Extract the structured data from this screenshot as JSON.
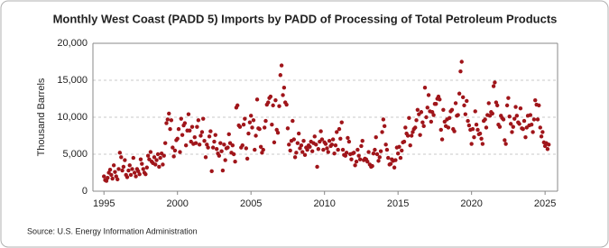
{
  "chart_data": {
    "type": "scatter",
    "title": "Monthly West Coast (PADD 5) Imports by PADD of Processing of Total Petroleum Products",
    "y_label": "Thousand Barrels",
    "source": "Source: U.S. Energy Information Administration",
    "color": "#a0151a",
    "grid": true,
    "xlim": [
      1994.25,
      2025.85
    ],
    "ylim": [
      0,
      20000
    ],
    "xticks": [
      1995,
      2000,
      2005,
      2010,
      2015,
      2020,
      2025
    ],
    "yticks": [
      0,
      {
        "value": 5000,
        "label": "5,000"
      },
      {
        "value": 10000,
        "label": "10,000"
      },
      {
        "value": 15000,
        "label": "15,000"
      },
      {
        "value": 20000,
        "label": "20,000"
      }
    ],
    "x": [
      1995,
      1995.08,
      1995.17,
      1995.25,
      1995.33,
      1995.42,
      1995.5,
      1995.58,
      1995.67,
      1995.75,
      1995.83,
      1995.92,
      1996,
      1996.08,
      1996.17,
      1996.25,
      1996.33,
      1996.42,
      1996.5,
      1996.58,
      1996.67,
      1996.75,
      1996.83,
      1996.92,
      1997,
      1997.08,
      1997.17,
      1997.25,
      1997.33,
      1997.42,
      1997.5,
      1997.58,
      1997.67,
      1997.75,
      1997.83,
      1997.92,
      1998,
      1998.08,
      1998.17,
      1998.25,
      1998.33,
      1998.42,
      1998.5,
      1998.58,
      1998.67,
      1998.75,
      1998.83,
      1998.92,
      1999,
      1999.08,
      1999.17,
      1999.25,
      1999.33,
      1999.42,
      1999.5,
      1999.58,
      1999.67,
      1999.75,
      1999.83,
      1999.92,
      2000,
      2000.08,
      2000.17,
      2000.25,
      2000.33,
      2000.42,
      2000.5,
      2000.58,
      2000.67,
      2000.75,
      2000.83,
      2000.92,
      2001,
      2001.08,
      2001.17,
      2001.25,
      2001.33,
      2001.42,
      2001.5,
      2001.58,
      2001.67,
      2001.75,
      2001.83,
      2001.92,
      2002,
      2002.08,
      2002.17,
      2002.25,
      2002.33,
      2002.42,
      2002.5,
      2002.58,
      2002.67,
      2002.75,
      2002.83,
      2002.92,
      2003,
      2003.08,
      2003.17,
      2003.25,
      2003.33,
      2003.42,
      2003.5,
      2003.58,
      2003.67,
      2003.75,
      2003.83,
      2003.92,
      2004,
      2004.08,
      2004.17,
      2004.25,
      2004.33,
      2004.42,
      2004.5,
      2004.58,
      2004.67,
      2004.75,
      2004.83,
      2004.92,
      2005,
      2005.08,
      2005.17,
      2005.25,
      2005.33,
      2005.42,
      2005.5,
      2005.58,
      2005.67,
      2005.75,
      2005.83,
      2005.92,
      2006,
      2006.08,
      2006.17,
      2006.25,
      2006.33,
      2006.42,
      2006.5,
      2006.58,
      2006.67,
      2006.75,
      2006.83,
      2006.92,
      2007,
      2007.08,
      2007.17,
      2007.25,
      2007.33,
      2007.42,
      2007.5,
      2007.58,
      2007.67,
      2007.75,
      2007.83,
      2007.92,
      2008,
      2008.08,
      2008.17,
      2008.25,
      2008.33,
      2008.42,
      2008.5,
      2008.58,
      2008.67,
      2008.75,
      2008.83,
      2008.92,
      2009,
      2009.08,
      2009.17,
      2009.25,
      2009.33,
      2009.42,
      2009.5,
      2009.58,
      2009.67,
      2009.75,
      2009.83,
      2009.92,
      2010,
      2010.08,
      2010.17,
      2010.25,
      2010.33,
      2010.42,
      2010.5,
      2010.58,
      2010.67,
      2010.75,
      2010.83,
      2010.92,
      2011,
      2011.08,
      2011.17,
      2011.25,
      2011.33,
      2011.42,
      2011.5,
      2011.58,
      2011.67,
      2011.75,
      2011.83,
      2011.92,
      2012,
      2012.08,
      2012.17,
      2012.25,
      2012.33,
      2012.42,
      2012.5,
      2012.58,
      2012.67,
      2012.75,
      2012.83,
      2012.92,
      2013,
      2013.08,
      2013.17,
      2013.25,
      2013.33,
      2013.42,
      2013.5,
      2013.58,
      2013.67,
      2013.75,
      2013.83,
      2013.92,
      2014,
      2014.08,
      2014.17,
      2014.25,
      2014.33,
      2014.42,
      2014.5,
      2014.58,
      2014.67,
      2014.75,
      2014.83,
      2014.92,
      2015,
      2015.08,
      2015.17,
      2015.25,
      2015.33,
      2015.42,
      2015.5,
      2015.58,
      2015.67,
      2015.75,
      2015.83,
      2015.92,
      2016,
      2016.08,
      2016.17,
      2016.25,
      2016.33,
      2016.42,
      2016.5,
      2016.58,
      2016.67,
      2016.75,
      2016.83,
      2016.92,
      2017,
      2017.08,
      2017.17,
      2017.25,
      2017.33,
      2017.42,
      2017.5,
      2017.58,
      2017.67,
      2017.75,
      2017.83,
      2017.92,
      2018,
      2018.08,
      2018.17,
      2018.25,
      2018.33,
      2018.42,
      2018.5,
      2018.58,
      2018.67,
      2018.75,
      2018.83,
      2018.92,
      2019,
      2019.08,
      2019.17,
      2019.25,
      2019.33,
      2019.42,
      2019.5,
      2019.58,
      2019.67,
      2019.75,
      2019.83,
      2019.92,
      2020,
      2020.08,
      2020.17,
      2020.25,
      2020.33,
      2020.42,
      2020.5,
      2020.58,
      2020.67,
      2020.75,
      2020.83,
      2020.92,
      2021,
      2021.08,
      2021.17,
      2021.25,
      2021.33,
      2021.42,
      2021.5,
      2021.58,
      2021.67,
      2021.75,
      2021.83,
      2021.92,
      2022,
      2022.08,
      2022.17,
      2022.25,
      2022.33,
      2022.42,
      2022.5,
      2022.58,
      2022.67,
      2022.75,
      2022.83,
      2022.92,
      2023,
      2023.08,
      2023.17,
      2023.25,
      2023.33,
      2023.42,
      2023.5,
      2023.58,
      2023.67,
      2023.75,
      2023.83,
      2023.92,
      2024,
      2024.08,
      2024.17,
      2024.25,
      2024.33,
      2024.42,
      2024.5,
      2024.58,
      2024.67,
      2024.75,
      2024.83,
      2024.92,
      2025,
      2025.08,
      2025.17,
      2025.25
    ],
    "values": [
      2000,
      1500,
      1400,
      1800,
      2500,
      2900,
      2200,
      1700,
      3500,
      2600,
      2000,
      1600,
      3000,
      5200,
      4600,
      2800,
      3300,
      4200,
      2200,
      1900,
      2800,
      3500,
      2200,
      3000,
      4500,
      2500,
      2000,
      3000,
      2700,
      2300,
      4300,
      3700,
      3000,
      2500,
      2300,
      3200,
      4800,
      4300,
      5300,
      4000,
      3800,
      4600,
      3600,
      4200,
      5000,
      3300,
      4500,
      5100,
      3600,
      4800,
      6500,
      9200,
      9700,
      10500,
      8400,
      9600,
      5900,
      4700,
      5500,
      6900,
      7100,
      8400,
      5300,
      9800,
      7600,
      8900,
      9200,
      6200,
      8200,
      10400,
      8200,
      6700,
      8700,
      6400,
      7300,
      6500,
      8700,
      9600,
      6300,
      7500,
      8000,
      9800,
      6800,
      4600,
      6300,
      5900,
      7400,
      8100,
      2700,
      5900,
      6700,
      7600,
      5700,
      5100,
      4800,
      6500,
      5400,
      2800,
      6300,
      4200,
      5800,
      5900,
      7700,
      6500,
      5200,
      6200,
      5000,
      4000,
      11300,
      11600,
      8900,
      8700,
      5900,
      6200,
      9000,
      9800,
      5800,
      4400,
      7800,
      9300,
      10200,
      8600,
      9600,
      5600,
      7500,
      12400,
      8500,
      8400,
      6000,
      5200,
      5600,
      8600,
      9500,
      11700,
      12000,
      12600,
      12800,
      9000,
      11600,
      6600,
      12300,
      8300,
      7900,
      11500,
      15700,
      17000,
      13000,
      14000,
      12000,
      11700,
      8500,
      6300,
      5500,
      6800,
      9500,
      7000,
      4600,
      5200,
      6500,
      7800,
      5800,
      6200,
      5300,
      6800,
      4900,
      5900,
      5600,
      6200,
      6000,
      6700,
      5400,
      6500,
      7400,
      6300,
      3300,
      5700,
      6700,
      8100,
      7000,
      5600,
      6600,
      6400,
      5800,
      5300,
      6800,
      6100,
      6300,
      7000,
      5100,
      6200,
      8000,
      5600,
      8400,
      7100,
      9300,
      5600,
      4900,
      4800,
      5200,
      7200,
      6700,
      5000,
      4300,
      5100,
      5200,
      3500,
      4000,
      5600,
      4800,
      4300,
      6100,
      6800,
      4200,
      4400,
      4300,
      4000,
      5300,
      3600,
      3300,
      3400,
      5100,
      5600,
      7300,
      5000,
      4100,
      4600,
      5400,
      8000,
      9700,
      8800,
      6300,
      5600,
      4500,
      3600,
      3700,
      4300,
      4100,
      3200,
      4200,
      5900,
      5100,
      6000,
      4500,
      5500,
      6600,
      6700,
      8600,
      7800,
      7500,
      9900,
      6200,
      7500,
      8000,
      8400,
      8600,
      9600,
      11000,
      10400,
      7600,
      10700,
      9300,
      8800,
      14000,
      10000,
      11300,
      13000,
      10800,
      9400,
      10700,
      10300,
      11800,
      11800,
      12500,
      12800,
      12400,
      8300,
      7000,
      11000,
      9400,
      8800,
      9700,
      8600,
      9900,
      10800,
      11000,
      8400,
      8100,
      11900,
      10200,
      10300,
      13200,
      16200,
      17500,
      12700,
      11600,
      10400,
      12200,
      9500,
      8900,
      8300,
      6400,
      8400,
      7300,
      10800,
      9000,
      8300,
      7700,
      7800,
      7100,
      6400,
      9500,
      9700,
      8600,
      10300,
      11900,
      10200,
      10700,
      10500,
      14200,
      14700,
      12000,
      11600,
      9000,
      8700,
      10200,
      9900,
      9700,
      6900,
      6400,
      11600,
      12600,
      10100,
      9100,
      8000,
      8700,
      9800,
      11400,
      10200,
      9300,
      9100,
      11200,
      8500,
      8400,
      9500,
      7300,
      8600,
      10200,
      8900,
      10300,
      9000,
      8000,
      9700,
      12300,
      11700,
      9700,
      11600,
      8600,
      7400,
      8000,
      6600,
      6100,
      6500,
      5700,
      6300
    ]
  }
}
